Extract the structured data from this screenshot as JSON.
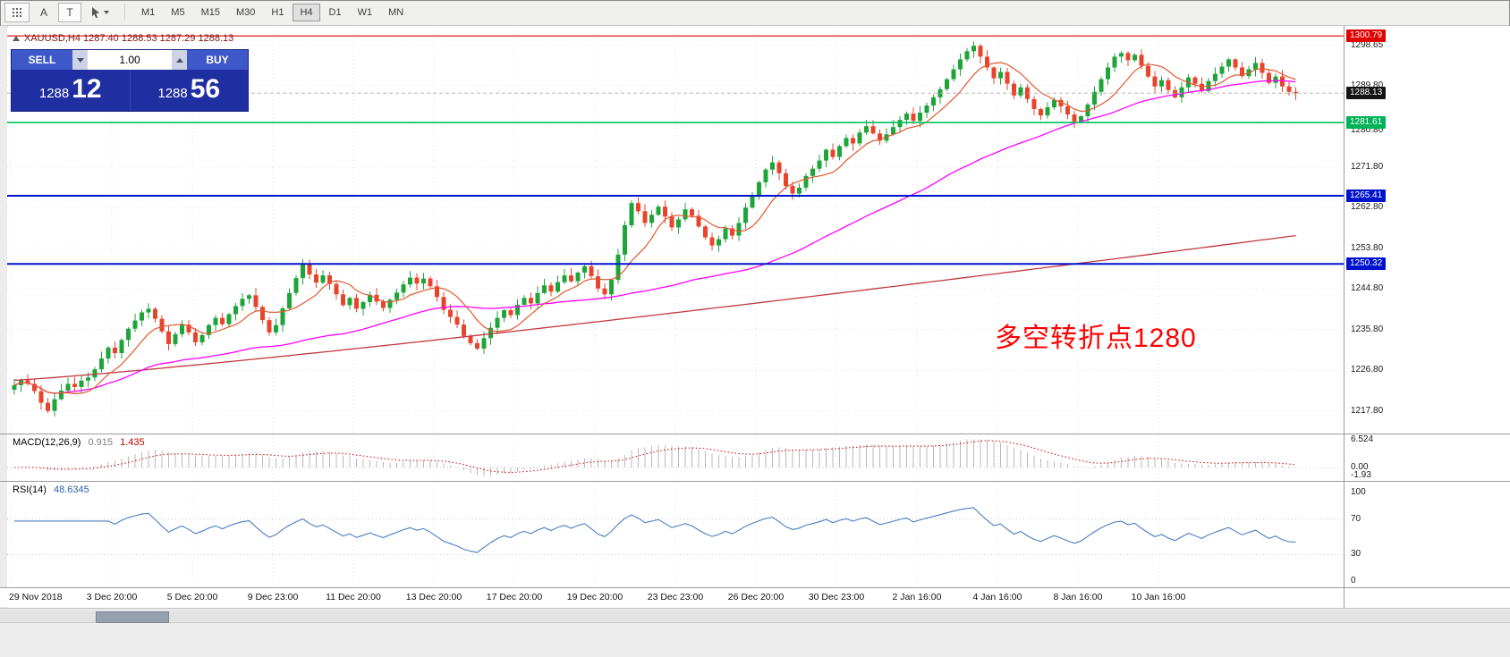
{
  "toolbar": {
    "tools": {
      "a_label": "A",
      "t_label": "T"
    },
    "timeframes": [
      "M1",
      "M5",
      "M15",
      "M30",
      "H1",
      "H4",
      "D1",
      "W1",
      "MN"
    ],
    "active_timeframe": "H4"
  },
  "chart_header": {
    "title": "XAUUSD,H4 1287.40 1288.53 1287.29 1288.13"
  },
  "trade_panel": {
    "sell_label": "SELL",
    "buy_label": "BUY",
    "volume": "1.00",
    "sell_price": {
      "main": "1288",
      "pips": "12"
    },
    "buy_price": {
      "main": "1288",
      "pips": "56"
    }
  },
  "annotation": {
    "text": "多空转折点1280",
    "color": "#ff0000"
  },
  "price_axis": {
    "ticks": [
      1298.65,
      1289.8,
      1280.8,
      1271.8,
      1262.8,
      1253.8,
      1244.8,
      1235.8,
      1226.8,
      1217.8
    ],
    "levels": [
      {
        "text": "1300.79",
        "value": 1300.79,
        "line_color": "#e00000",
        "badge_color": "#e00000",
        "style": "solid",
        "width": 1.2
      },
      {
        "text": "1288.13",
        "value": 1288.13,
        "line_color": "#b5b5b5",
        "badge_color": "#141414",
        "style": "dash",
        "width": 1
      },
      {
        "text": "1281.61",
        "value": 1281.61,
        "line_color": "#00bf5f",
        "badge_color": "#00b257",
        "style": "solid",
        "width": 1.6
      },
      {
        "text": "1265.41",
        "value": 1265.41,
        "line_color": "#0013cc",
        "badge_color": "#0013cc",
        "style": "solid",
        "width": 2
      },
      {
        "text": "1250.32",
        "value": 1250.32,
        "line_color": "#0013cc",
        "badge_color": "#0013cc",
        "style": "solid",
        "width": 2
      }
    ]
  },
  "time_axis": {
    "labels": [
      "29 Nov 2018",
      "3 Dec 20:00",
      "5 Dec 20:00",
      "9 Dec 23:00",
      "11 Dec 20:00",
      "13 Dec 20:00",
      "17 Dec 20:00",
      "19 Dec 20:00",
      "23 Dec 23:00",
      "26 Dec 20:00",
      "30 Dec 23:00",
      "2 Jan 16:00",
      "4 Jan 16:00",
      "8 Jan 16:00",
      "10 Jan 16:00"
    ]
  },
  "macd_panel": {
    "name": "MACD(12,26,9)",
    "main_value": "0.915",
    "signal_value": "1.435",
    "axis": [
      {
        "text": "6.524",
        "value": 6.524
      },
      {
        "text": "0.00",
        "value": 0
      },
      {
        "text": "-1.93",
        "value": -1.93
      }
    ]
  },
  "rsi_panel": {
    "name": "RSI(14)",
    "value": "48.6345",
    "axis": [
      {
        "text": "100",
        "value": 100
      },
      {
        "text": "70",
        "value": 70
      },
      {
        "text": "30",
        "value": 30
      },
      {
        "text": "0",
        "value": 0
      }
    ]
  },
  "colors": {
    "candle_up": "#1ea53a",
    "candle_down": "#e8442c",
    "macd_hist": "#b9b9b9",
    "macd_signal": "#d40000",
    "rsi_line": "#4a7ec2",
    "grid": "#e9e9e9"
  },
  "chart_data": {
    "type": "candlestick",
    "symbol": "XAUUSD",
    "timeframe": "H4",
    "ohlc_display": {
      "open": "1287.40",
      "high": "1288.53",
      "low": "1287.29",
      "close": "1288.13"
    },
    "y_range": [
      1212.8,
      1302.6
    ],
    "first_open": 1222.5,
    "closes": [
      1223.5,
      1224.6,
      1223.8,
      1222.2,
      1219.6,
      1217.8,
      1220.4,
      1222.3,
      1223.8,
      1223.1,
      1224.5,
      1225.2,
      1227.0,
      1229.4,
      1231.8,
      1230.6,
      1233.5,
      1236.0,
      1237.8,
      1239.6,
      1240.4,
      1238.2,
      1235.4,
      1232.6,
      1234.8,
      1236.9,
      1235.2,
      1233.0,
      1234.6,
      1236.8,
      1238.4,
      1237.0,
      1239.2,
      1241.0,
      1242.6,
      1243.4,
      1240.8,
      1237.9,
      1235.2,
      1236.8,
      1240.5,
      1243.9,
      1247.2,
      1250.4,
      1248.0,
      1246.2,
      1247.8,
      1245.9,
      1243.6,
      1241.2,
      1242.8,
      1240.4,
      1241.9,
      1243.5,
      1242.0,
      1240.6,
      1242.4,
      1244.0,
      1245.8,
      1247.3,
      1246.0,
      1247.1,
      1245.4,
      1243.0,
      1240.2,
      1238.6,
      1236.9,
      1234.4,
      1232.8,
      1231.6,
      1233.9,
      1236.2,
      1238.4,
      1240.1,
      1239.0,
      1241.3,
      1242.8,
      1241.6,
      1243.9,
      1245.6,
      1244.2,
      1246.3,
      1247.8,
      1246.5,
      1248.4,
      1249.8,
      1247.6,
      1244.9,
      1243.6,
      1246.8,
      1252.4,
      1258.9,
      1263.8,
      1262.0,
      1259.4,
      1261.2,
      1263.0,
      1260.8,
      1258.4,
      1260.2,
      1262.4,
      1261.0,
      1258.6,
      1256.2,
      1254.4,
      1255.8,
      1258.2,
      1256.6,
      1259.4,
      1262.8,
      1265.6,
      1268.4,
      1271.2,
      1272.8,
      1270.4,
      1267.6,
      1265.9,
      1267.2,
      1269.8,
      1271.4,
      1273.2,
      1275.6,
      1274.0,
      1276.4,
      1278.2,
      1277.0,
      1279.4,
      1280.8,
      1279.2,
      1277.6,
      1279.0,
      1280.6,
      1282.2,
      1283.6,
      1282.0,
      1283.8,
      1285.4,
      1287.2,
      1289.0,
      1291.2,
      1293.4,
      1295.6,
      1297.4,
      1298.6,
      1296.2,
      1293.8,
      1291.4,
      1292.8,
      1290.2,
      1287.6,
      1289.4,
      1286.8,
      1284.6,
      1283.2,
      1285.0,
      1286.6,
      1285.2,
      1283.4,
      1281.8,
      1283.0,
      1285.6,
      1288.4,
      1291.2,
      1293.8,
      1296.2,
      1297.0,
      1295.4,
      1296.6,
      1294.2,
      1291.8,
      1289.6,
      1291.0,
      1288.8,
      1287.2,
      1289.4,
      1291.6,
      1290.2,
      1288.6,
      1290.8,
      1292.4,
      1294.0,
      1295.6,
      1293.8,
      1291.9,
      1293.4,
      1294.8,
      1292.6,
      1290.4,
      1291.8,
      1289.6,
      1288.4,
      1288.1
    ],
    "moving_averages": [
      {
        "name": "fast",
        "type": "sma",
        "period": 8,
        "color": "#e2572f"
      },
      {
        "name": "medium",
        "type": "sma",
        "period": 50,
        "color": "#ff00ff"
      },
      {
        "name": "slow",
        "type": "synthetic",
        "start": 1224.6,
        "rise": 32.0,
        "exp": 1.15,
        "color": "#c2373f"
      }
    ],
    "horizontal_levels": [
      1300.79,
      1288.13,
      1281.61,
      1265.41,
      1250.32
    ],
    "macd": {
      "fast": 12,
      "slow": 26,
      "signal": 9,
      "display_main": 0.915,
      "display_signal": 1.435,
      "axis_range": [
        -1.93,
        6.524
      ]
    },
    "rsi": {
      "period": 14,
      "display_value": 48.6345,
      "bands": [
        70,
        30
      ],
      "axis_range": [
        0,
        100
      ]
    }
  }
}
